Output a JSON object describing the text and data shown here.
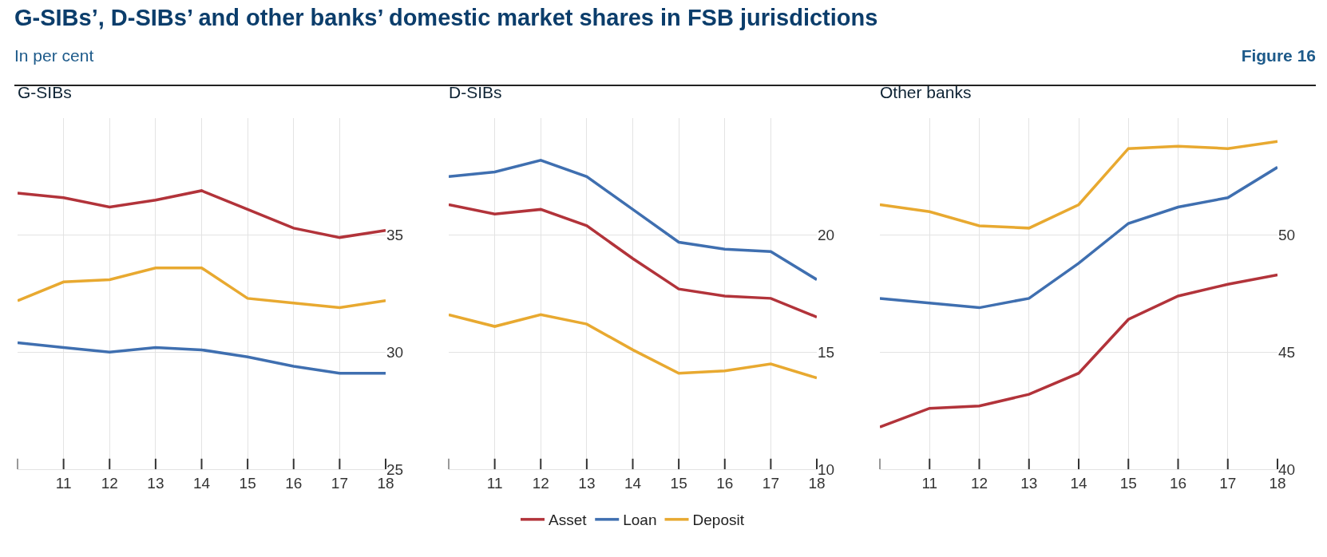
{
  "chart_data": [
    {
      "type": "other",
      "title": "G-SIBs’, D-SIBs’ and other banks’ domestic market shares in FSB jurisdictions",
      "subtitle": "In per cent",
      "annotations": [
        "Figure 16"
      ]
    },
    {
      "type": "line",
      "title": "G-SIBs",
      "x": [
        10,
        11,
        12,
        13,
        14,
        15,
        16,
        17,
        18
      ],
      "xlim": [
        10,
        18
      ],
      "xticks": [
        11,
        12,
        13,
        14,
        15,
        16,
        17,
        18
      ],
      "ylim": [
        25,
        40
      ],
      "yticks": [
        25,
        30,
        35
      ],
      "grid": true,
      "series": [
        {
          "color": "#b2333a",
          "values": [
            36.8,
            36.6,
            36.2,
            36.5,
            36.9,
            36.1,
            35.3,
            34.9,
            35.2
          ]
        },
        {
          "color": "#3f6fb0",
          "values": [
            30.4,
            30.2,
            30.0,
            30.2,
            30.1,
            29.8,
            29.4,
            29.1,
            29.1
          ]
        },
        {
          "color": "#e8a930",
          "values": [
            32.2,
            33.0,
            33.1,
            33.6,
            33.6,
            32.3,
            32.1,
            31.9,
            32.2
          ]
        }
      ]
    },
    {
      "type": "line",
      "title": "D-SIBs",
      "x": [
        10,
        11,
        12,
        13,
        14,
        15,
        16,
        17,
        18
      ],
      "xlim": [
        10,
        18
      ],
      "xticks": [
        11,
        12,
        13,
        14,
        15,
        16,
        17,
        18
      ],
      "ylim": [
        10,
        25
      ],
      "yticks": [
        10,
        15,
        20
      ],
      "grid": true,
      "legend": "bottom",
      "series": [
        {
          "name": "Asset",
          "color": "#b2333a",
          "values": [
            21.3,
            20.9,
            21.1,
            20.4,
            19.0,
            17.7,
            17.4,
            17.3,
            16.5
          ]
        },
        {
          "name": "Loan",
          "color": "#3f6fb0",
          "values": [
            22.5,
            22.7,
            23.2,
            22.5,
            21.1,
            19.7,
            19.4,
            19.3,
            18.1
          ]
        },
        {
          "name": "Deposit",
          "color": "#e8a930",
          "values": [
            16.6,
            16.1,
            16.6,
            16.2,
            15.1,
            14.1,
            14.2,
            14.5,
            13.9
          ]
        }
      ]
    },
    {
      "type": "line",
      "title": "Other banks",
      "x": [
        10,
        11,
        12,
        13,
        14,
        15,
        16,
        17,
        18
      ],
      "xlim": [
        10,
        18
      ],
      "xticks": [
        11,
        12,
        13,
        14,
        15,
        16,
        17,
        18
      ],
      "ylim": [
        40,
        55
      ],
      "yticks": [
        40,
        45,
        50
      ],
      "grid": true,
      "series": [
        {
          "color": "#b2333a",
          "values": [
            41.8,
            42.6,
            42.7,
            43.2,
            44.1,
            46.4,
            47.4,
            47.9,
            48.3
          ]
        },
        {
          "color": "#3f6fb0",
          "values": [
            47.3,
            47.1,
            46.9,
            47.3,
            48.8,
            50.5,
            51.2,
            51.6,
            52.9
          ]
        },
        {
          "color": "#e8a930",
          "values": [
            51.3,
            51.0,
            50.4,
            50.3,
            51.3,
            53.7,
            53.8,
            53.7,
            54.0
          ]
        }
      ]
    }
  ]
}
